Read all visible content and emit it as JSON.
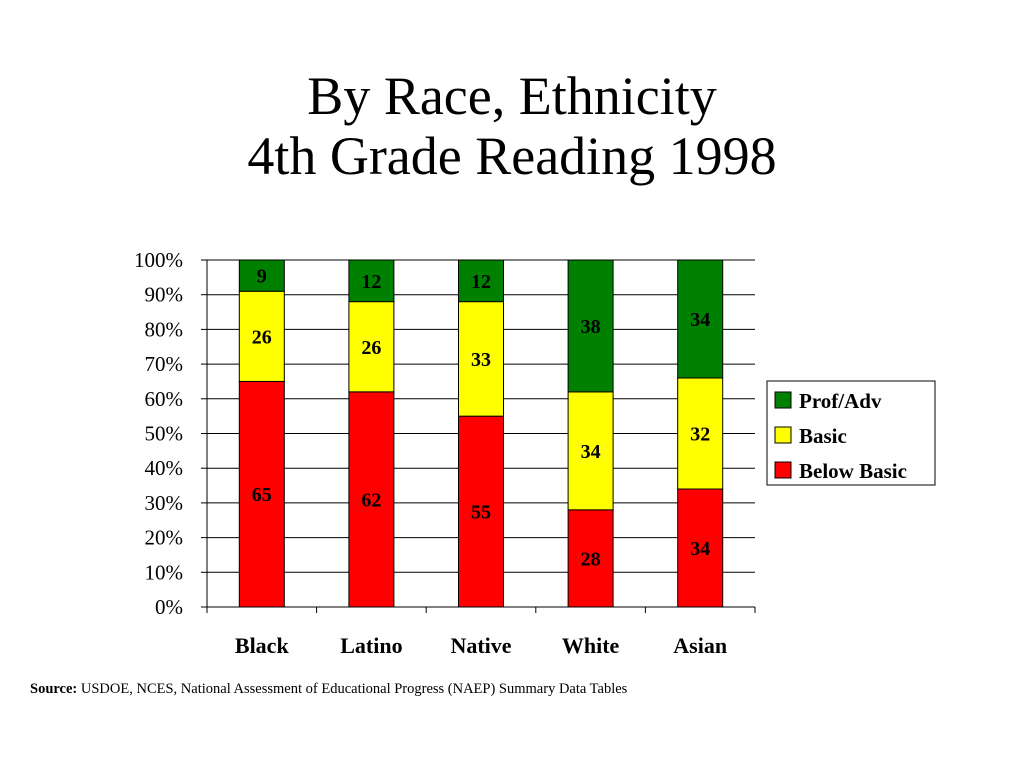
{
  "title": {
    "line1": "By Race, Ethnicity",
    "line2": "4th Grade Reading 1998"
  },
  "colors": {
    "prof_adv": "#008000",
    "basic": "#FFFF00",
    "below_basic": "#FF0000"
  },
  "chart_data": {
    "type": "bar",
    "stacked": true,
    "categories": [
      "Black",
      "Latino",
      "Native",
      "White",
      "Asian"
    ],
    "series": [
      {
        "name": "Below Basic",
        "values": [
          65,
          62,
          55,
          28,
          34
        ]
      },
      {
        "name": "Basic",
        "values": [
          26,
          26,
          33,
          34,
          32
        ]
      },
      {
        "name": "Prof/Adv",
        "values": [
          9,
          12,
          12,
          38,
          34
        ]
      }
    ],
    "y_ticks": [
      "0%",
      "10%",
      "20%",
      "30%",
      "40%",
      "50%",
      "60%",
      "70%",
      "80%",
      "90%",
      "100%"
    ],
    "ylim": [
      0,
      100
    ],
    "grid": true,
    "legend_position": "right",
    "legend_order": [
      "Prof/Adv",
      "Basic",
      "Below Basic"
    ]
  },
  "source": {
    "label": "Source:",
    "text": " USDOE, NCES, National Assessment of Educational Progress (NAEP) Summary Data Tables"
  }
}
